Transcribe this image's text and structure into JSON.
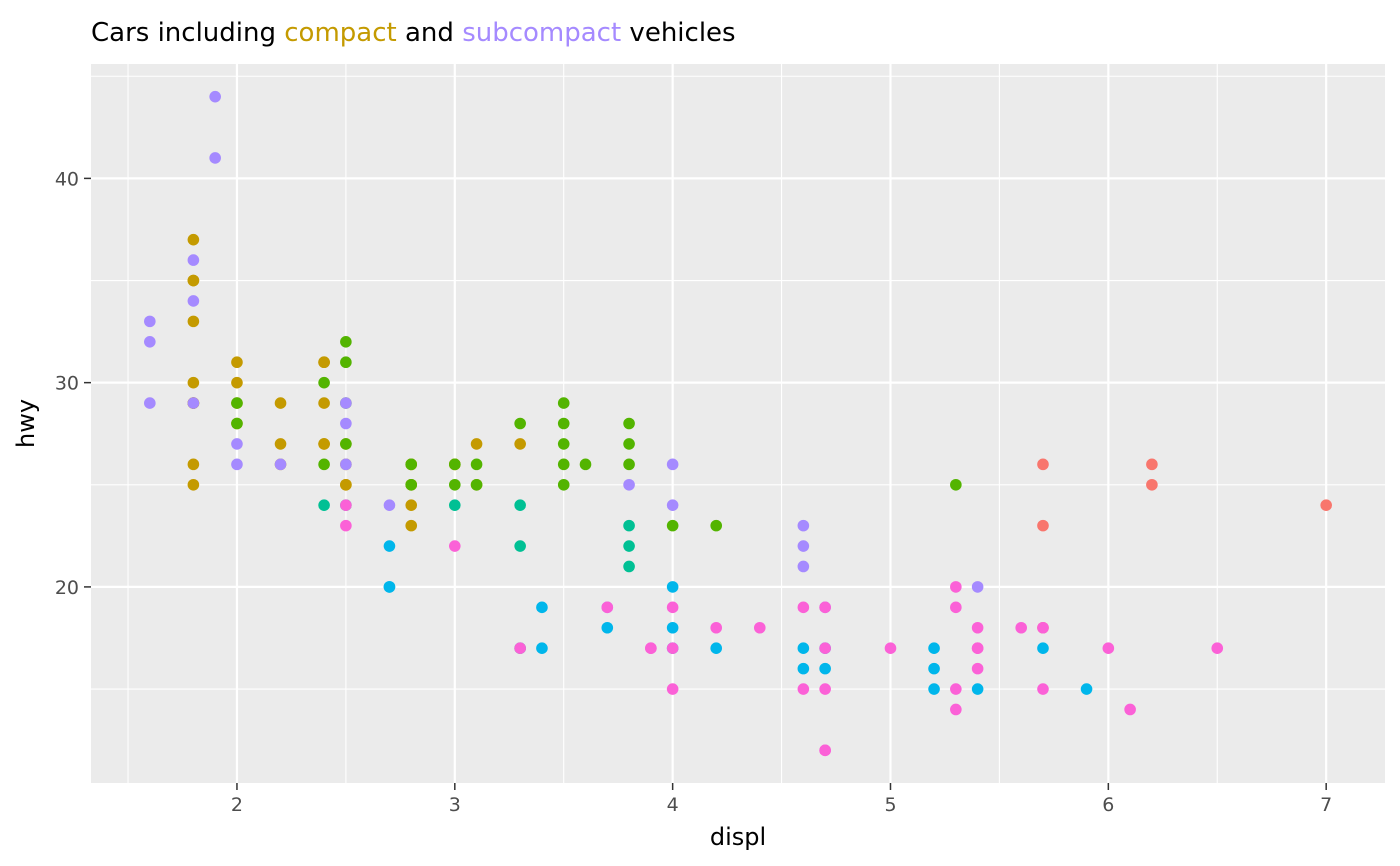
{
  "colors": {
    "panel_background": "#EBEBEB",
    "grid_major": "#FFFFFF",
    "tick_label": "#4D4D4D",
    "compact": "#C49A00",
    "subcompact": "#A58AFF"
  },
  "chart_data": {
    "type": "scatter",
    "title_segments": [
      {
        "text": "Cars including ",
        "color": "#000000"
      },
      {
        "text": "compact",
        "color": "#C49A00"
      },
      {
        "text": " and ",
        "color": "#000000"
      },
      {
        "text": "subcompact",
        "color": "#A58AFF"
      },
      {
        "text": " vehicles",
        "color": "#000000"
      }
    ],
    "xlabel": "displ",
    "ylabel": "hwy",
    "xlim": [
      1.33,
      7.27
    ],
    "ylim": [
      10.4,
      45.6
    ],
    "x_ticks": [
      2,
      3,
      4,
      5,
      6,
      7
    ],
    "y_ticks": [
      20,
      30,
      40
    ],
    "grid": true,
    "legend": "none",
    "series": [
      {
        "color": "#F8766D",
        "points": [
          [
            5.7,
            26
          ],
          [
            5.7,
            23
          ],
          [
            6.2,
            26
          ],
          [
            6.2,
            25
          ],
          [
            7.0,
            24
          ],
          [
            5.7,
            18
          ]
        ]
      },
      {
        "color": "#C49A00",
        "points": [
          [
            1.8,
            29
          ],
          [
            1.8,
            29
          ],
          [
            2.0,
            31
          ],
          [
            2.0,
            30
          ],
          [
            2.8,
            26
          ],
          [
            2.8,
            26
          ],
          [
            3.1,
            27
          ],
          [
            1.8,
            26
          ],
          [
            1.8,
            25
          ],
          [
            2.0,
            28
          ],
          [
            2.0,
            29
          ],
          [
            2.8,
            25
          ],
          [
            2.8,
            25
          ],
          [
            3.1,
            25
          ],
          [
            2.2,
            27
          ],
          [
            2.2,
            29
          ],
          [
            2.4,
            31
          ],
          [
            2.4,
            31
          ],
          [
            3.0,
            26
          ],
          [
            3.3,
            27
          ],
          [
            1.8,
            30
          ],
          [
            1.8,
            33
          ],
          [
            1.8,
            35
          ],
          [
            1.8,
            37
          ],
          [
            1.8,
            35
          ],
          [
            1.8,
            29
          ],
          [
            2.2,
            26
          ],
          [
            2.4,
            29
          ],
          [
            2.4,
            27
          ],
          [
            2.5,
            25
          ],
          [
            2.5,
            27
          ],
          [
            2.8,
            23
          ],
          [
            2.8,
            24
          ],
          [
            3.0,
            26
          ],
          [
            2.5,
            26
          ],
          [
            2.5,
            25
          ],
          [
            2.4,
            27
          ]
        ]
      },
      {
        "color": "#53B400",
        "points": [
          [
            2.4,
            30
          ],
          [
            2.4,
            26
          ],
          [
            2.5,
            29
          ],
          [
            2.5,
            32
          ],
          [
            2.5,
            31
          ],
          [
            3.5,
            29
          ],
          [
            3.5,
            28
          ],
          [
            3.5,
            27
          ],
          [
            3.5,
            26
          ],
          [
            3.5,
            25
          ],
          [
            3.6,
            26
          ],
          [
            3.3,
            28
          ],
          [
            3.8,
            28
          ],
          [
            3.8,
            27
          ],
          [
            3.8,
            26
          ],
          [
            2.0,
            28
          ],
          [
            2.0,
            29
          ],
          [
            2.8,
            26
          ],
          [
            2.8,
            25
          ],
          [
            3.0,
            26
          ],
          [
            3.0,
            25
          ],
          [
            3.1,
            26
          ],
          [
            3.1,
            25
          ],
          [
            4.0,
            23
          ],
          [
            4.2,
            23
          ],
          [
            5.3,
            25
          ],
          [
            2.5,
            27
          ]
        ]
      },
      {
        "color": "#00C094",
        "points": [
          [
            2.4,
            24
          ],
          [
            3.0,
            24
          ],
          [
            3.3,
            24
          ],
          [
            3.3,
            22
          ],
          [
            3.8,
            23
          ],
          [
            3.8,
            22
          ],
          [
            3.8,
            21
          ],
          [
            2.5,
            24
          ],
          [
            3.3,
            17
          ]
        ]
      },
      {
        "color": "#00B6EB",
        "points": [
          [
            2.7,
            22
          ],
          [
            2.7,
            20
          ],
          [
            2.7,
            20
          ],
          [
            3.4,
            19
          ],
          [
            3.4,
            17
          ],
          [
            3.7,
            18
          ],
          [
            4.0,
            20
          ],
          [
            4.0,
            18
          ],
          [
            4.0,
            17
          ],
          [
            4.2,
            17
          ],
          [
            4.6,
            17
          ],
          [
            4.6,
            16
          ],
          [
            4.7,
            17
          ],
          [
            4.7,
            16
          ],
          [
            5.2,
            17
          ],
          [
            5.2,
            16
          ],
          [
            5.2,
            15
          ],
          [
            5.4,
            15
          ],
          [
            5.7,
            17
          ],
          [
            5.9,
            15
          ]
        ]
      },
      {
        "color": "#A58AFF",
        "points": [
          [
            1.6,
            33
          ],
          [
            1.6,
            32
          ],
          [
            1.6,
            29
          ],
          [
            1.8,
            34
          ],
          [
            1.8,
            36
          ],
          [
            1.8,
            29
          ],
          [
            1.9,
            44
          ],
          [
            1.9,
            41
          ],
          [
            2.0,
            27
          ],
          [
            2.0,
            26
          ],
          [
            2.2,
            26
          ],
          [
            2.5,
            29
          ],
          [
            2.5,
            28
          ],
          [
            2.5,
            26
          ],
          [
            2.7,
            24
          ],
          [
            3.8,
            25
          ],
          [
            4.0,
            26
          ],
          [
            4.0,
            24
          ],
          [
            4.6,
            23
          ],
          [
            4.6,
            22
          ],
          [
            4.6,
            21
          ],
          [
            4.7,
            19
          ],
          [
            5.4,
            20
          ],
          [
            3.7,
            19
          ]
        ]
      },
      {
        "color": "#FB61D7",
        "points": [
          [
            2.5,
            24
          ],
          [
            2.5,
            23
          ],
          [
            3.0,
            22
          ],
          [
            3.3,
            17
          ],
          [
            3.7,
            19
          ],
          [
            3.9,
            17
          ],
          [
            3.9,
            17
          ],
          [
            4.0,
            19
          ],
          [
            4.0,
            17
          ],
          [
            4.0,
            15
          ],
          [
            4.2,
            18
          ],
          [
            4.4,
            18
          ],
          [
            4.6,
            19
          ],
          [
            4.6,
            15
          ],
          [
            4.7,
            19
          ],
          [
            4.7,
            17
          ],
          [
            4.7,
            15
          ],
          [
            4.7,
            12
          ],
          [
            4.7,
            12
          ],
          [
            5.0,
            17
          ],
          [
            5.3,
            20
          ],
          [
            5.3,
            19
          ],
          [
            5.3,
            15
          ],
          [
            5.3,
            14
          ],
          [
            5.4,
            18
          ],
          [
            5.4,
            17
          ],
          [
            5.4,
            16
          ],
          [
            5.6,
            18
          ],
          [
            5.7,
            18
          ],
          [
            5.7,
            15
          ],
          [
            6.0,
            17
          ],
          [
            6.1,
            14
          ],
          [
            6.5,
            17
          ],
          [
            5.4,
            17
          ]
        ]
      }
    ]
  }
}
